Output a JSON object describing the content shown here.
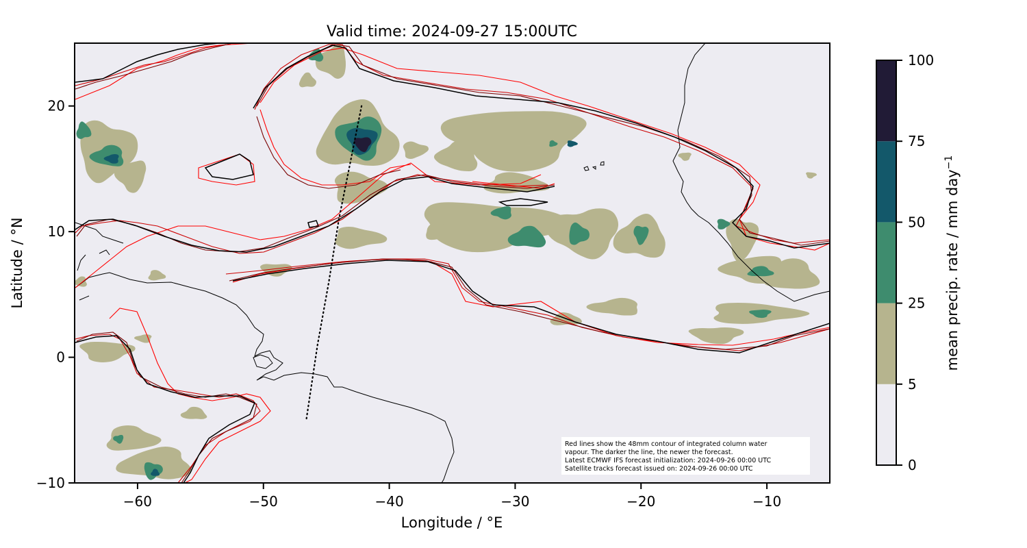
{
  "chart_data": {
    "type": "heatmap",
    "title": "Valid time: 2024-09-27 15:00UTC",
    "xlabel": "Longitude / °E",
    "ylabel": "Latitude / °N",
    "xlim": [
      -65,
      -5
    ],
    "ylim": [
      -10,
      25
    ],
    "xticks": [
      -60,
      -50,
      -40,
      -30,
      -20,
      -10
    ],
    "yticks": [
      -10,
      0,
      10,
      20
    ],
    "colorbar": {
      "label": "mean precip. rate / mm day",
      "label_exponent": "−1",
      "levels": [
        0,
        5,
        25,
        50,
        75,
        100
      ],
      "colors": [
        "#edecf2",
        "#b6b48e",
        "#3e8c6e",
        "#13586a",
        "#211b36"
      ]
    },
    "annotation": [
      "Red lines show the 48mm contour of integrated column water",
      "vapour. The darker the line, the newer the forecast.",
      "Latest ECMWF IFS forecast initialization: 2024-09-26 00:00 UTC",
      "Satellite tracks forecast issued on: 2024-09-26 00:00 UTC"
    ],
    "satellite_track": [
      [
        -42.2,
        20
      ],
      [
        -43.2,
        15
      ],
      [
        -44.0,
        11
      ],
      [
        -44.8,
        6
      ],
      [
        -45.7,
        1
      ],
      [
        -46.6,
        -5
      ]
    ],
    "precip_cells": [
      {
        "lon": -42.5,
        "lat": 17.5,
        "rx": 3.8,
        "ry": 3.2,
        "level": 5
      },
      {
        "lon": -42.3,
        "lat": 17.5,
        "rx": 2.2,
        "ry": 2.0,
        "level": 25
      },
      {
        "lon": -42.2,
        "lat": 17.3,
        "rx": 1.4,
        "ry": 1.3,
        "level": 50
      },
      {
        "lon": -42.1,
        "lat": 17.0,
        "rx": 0.8,
        "ry": 0.7,
        "level": 75
      },
      {
        "lon": -42.5,
        "lat": 13.5,
        "rx": 2.5,
        "ry": 1.5,
        "level": 5
      },
      {
        "lon": -30.0,
        "lat": 17.5,
        "rx": 6.5,
        "ry": 3.0,
        "level": 5
      },
      {
        "lon": -34.5,
        "lat": 16.0,
        "rx": 2.0,
        "ry": 1.5,
        "level": 5
      },
      {
        "lon": -30.0,
        "lat": 13.8,
        "rx": 3.0,
        "ry": 1.0,
        "level": 5
      },
      {
        "lon": -32.0,
        "lat": 10.5,
        "rx": 7.0,
        "ry": 2.3,
        "level": 5
      },
      {
        "lon": -24.5,
        "lat": 10.0,
        "rx": 3.5,
        "ry": 2.3,
        "level": 5
      },
      {
        "lon": -20.0,
        "lat": 9.5,
        "rx": 2.5,
        "ry": 2.0,
        "level": 5
      },
      {
        "lon": -29.0,
        "lat": 9.5,
        "rx": 1.8,
        "ry": 1.0,
        "level": 25
      },
      {
        "lon": -25.0,
        "lat": 9.8,
        "rx": 1.0,
        "ry": 1.0,
        "level": 25
      },
      {
        "lon": -20.0,
        "lat": 9.8,
        "rx": 0.7,
        "ry": 0.9,
        "level": 25
      },
      {
        "lon": -31.0,
        "lat": 11.5,
        "rx": 1.0,
        "ry": 0.6,
        "level": 25
      },
      {
        "lon": -36.0,
        "lat": 10.0,
        "rx": 1.5,
        "ry": 0.8,
        "level": 5
      },
      {
        "lon": -12.0,
        "lat": 9.5,
        "rx": 1.5,
        "ry": 2.0,
        "level": 5
      },
      {
        "lon": -11.0,
        "lat": 7.0,
        "rx": 3.0,
        "ry": 1.3,
        "level": 5
      },
      {
        "lon": -8.0,
        "lat": 6.5,
        "rx": 2.5,
        "ry": 1.5,
        "level": 5
      },
      {
        "lon": -10.5,
        "lat": 6.8,
        "rx": 1.2,
        "ry": 0.5,
        "level": 25
      },
      {
        "lon": -13.5,
        "lat": 10.6,
        "rx": 0.6,
        "ry": 0.5,
        "level": 25
      },
      {
        "lon": -11.0,
        "lat": 3.5,
        "rx": 4.5,
        "ry": 1.0,
        "level": 5
      },
      {
        "lon": -10.5,
        "lat": 3.5,
        "rx": 1.0,
        "ry": 0.4,
        "level": 25
      },
      {
        "lon": -14.0,
        "lat": 1.8,
        "rx": 2.5,
        "ry": 0.8,
        "level": 5
      },
      {
        "lon": -22.0,
        "lat": 4.0,
        "rx": 2.5,
        "ry": 0.8,
        "level": 5
      },
      {
        "lon": -26.0,
        "lat": 3.0,
        "rx": 1.5,
        "ry": 0.6,
        "level": 5
      },
      {
        "lon": -62.5,
        "lat": 16.5,
        "rx": 2.8,
        "ry": 2.8,
        "level": 5
      },
      {
        "lon": -62.3,
        "lat": 16.0,
        "rx": 1.6,
        "ry": 1.0,
        "level": 25
      },
      {
        "lon": -62.0,
        "lat": 15.8,
        "rx": 0.7,
        "ry": 0.45,
        "level": 50
      },
      {
        "lon": -64.3,
        "lat": 18.0,
        "rx": 0.7,
        "ry": 0.8,
        "level": 25
      },
      {
        "lon": -60.5,
        "lat": 14.5,
        "rx": 1.5,
        "ry": 1.5,
        "level": 5
      },
      {
        "lon": -58.5,
        "lat": -8.5,
        "rx": 3.5,
        "ry": 1.5,
        "level": 5
      },
      {
        "lon": -60.5,
        "lat": -6.5,
        "rx": 2.5,
        "ry": 1.2,
        "level": 5
      },
      {
        "lon": -58.8,
        "lat": -9.0,
        "rx": 0.9,
        "ry": 0.8,
        "level": 25
      },
      {
        "lon": -58.6,
        "lat": -9.2,
        "rx": 0.4,
        "ry": 0.35,
        "level": 50
      },
      {
        "lon": -61.5,
        "lat": -6.5,
        "rx": 0.5,
        "ry": 0.4,
        "level": 25
      },
      {
        "lon": -62.5,
        "lat": 0.5,
        "rx": 2.5,
        "ry": 1.0,
        "level": 5
      },
      {
        "lon": -59.5,
        "lat": 1.5,
        "rx": 0.8,
        "ry": 0.4,
        "level": 5
      },
      {
        "lon": -55.5,
        "lat": -4.5,
        "rx": 1.2,
        "ry": 0.6,
        "level": 5
      },
      {
        "lon": -42.5,
        "lat": 9.5,
        "rx": 2.5,
        "ry": 1.0,
        "level": 5
      },
      {
        "lon": -49.0,
        "lat": 7.0,
        "rx": 1.5,
        "ry": 0.6,
        "level": 5
      },
      {
        "lon": -44.5,
        "lat": 23.5,
        "rx": 1.5,
        "ry": 1.5,
        "level": 5
      },
      {
        "lon": -45.8,
        "lat": 24.0,
        "rx": 0.7,
        "ry": 0.6,
        "level": 25
      },
      {
        "lon": -46.5,
        "lat": 22.0,
        "rx": 0.8,
        "ry": 0.7,
        "level": 5
      },
      {
        "lon": -38.0,
        "lat": 16.5,
        "rx": 1.2,
        "ry": 0.8,
        "level": 5
      },
      {
        "lon": -16.5,
        "lat": 16.0,
        "rx": 0.6,
        "ry": 0.4,
        "level": 5
      },
      {
        "lon": -25.5,
        "lat": 17.0,
        "rx": 0.5,
        "ry": 0.3,
        "level": 50
      },
      {
        "lon": -27.0,
        "lat": 17.0,
        "rx": 0.4,
        "ry": 0.3,
        "level": 25
      },
      {
        "lon": -64.5,
        "lat": 6.0,
        "rx": 0.6,
        "ry": 0.5,
        "level": 5
      },
      {
        "lon": -58.5,
        "lat": 6.5,
        "rx": 0.8,
        "ry": 0.5,
        "level": 5
      },
      {
        "lon": -6.5,
        "lat": 14.5,
        "rx": 0.5,
        "ry": 0.3,
        "level": 5
      }
    ]
  }
}
